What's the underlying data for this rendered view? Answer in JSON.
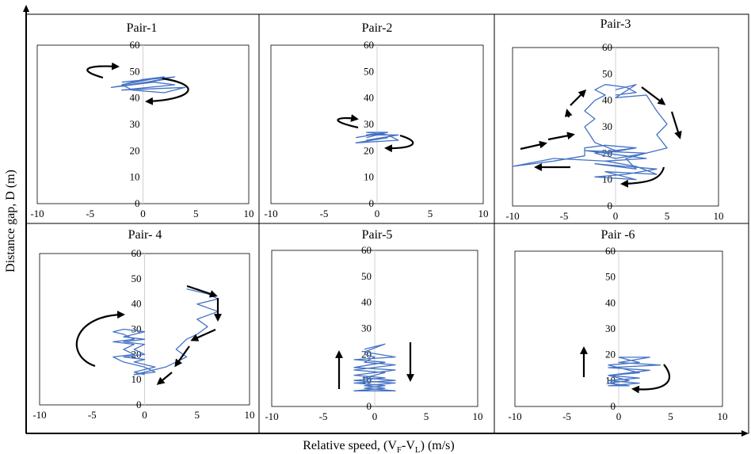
{
  "figure": {
    "ylabel": "Distance gap,  D (m)",
    "xlabel_prefix": "Relative speed, (V",
    "xlabel_sub_f": "F",
    "xlabel_mid": "-V",
    "xlabel_sub_l": "L",
    "xlabel_suffix": ") (m/s)"
  },
  "colors": {
    "trajectory": "#4472C4",
    "arrow": "#000000",
    "zero_line": "#d0d0d0",
    "frame": "#000000"
  },
  "chart_data": [
    {
      "type": "line",
      "title": "Pair-1",
      "xlim": [
        -10,
        10
      ],
      "ylim": [
        0,
        60
      ],
      "xticks": [
        -10,
        -5,
        0,
        5,
        10
      ],
      "yticks": [
        0,
        10,
        20,
        30,
        40,
        50,
        60
      ],
      "series": [
        {
          "values": [
            [
              -2,
              46
            ],
            [
              3,
              48
            ],
            [
              -1,
              45
            ],
            [
              2,
              47
            ],
            [
              -3,
              44
            ],
            [
              1,
              46
            ],
            [
              3,
              45
            ],
            [
              -2,
              43
            ],
            [
              4,
              44
            ],
            [
              2,
              42
            ],
            [
              -1,
              43
            ],
            [
              -2,
              45
            ],
            [
              2,
              48
            ],
            [
              0,
              47
            ],
            [
              -2,
              45
            ]
          ]
        }
      ]
    },
    {
      "type": "line",
      "title": "Pair-2",
      "xlim": [
        -10,
        10
      ],
      "ylim": [
        0,
        60
      ],
      "xticks": [
        -10,
        -5,
        0,
        5,
        10
      ],
      "yticks": [
        0,
        10,
        20,
        30,
        40,
        50,
        60
      ],
      "series": [
        {
          "values": [
            [
              -2,
              25
            ],
            [
              1,
              27
            ],
            [
              -1,
              26
            ],
            [
              2,
              26
            ],
            [
              -1,
              24
            ],
            [
              1,
              25
            ],
            [
              -2,
              23
            ],
            [
              2,
              24
            ],
            [
              1,
              26
            ],
            [
              -1,
              27
            ],
            [
              1,
              27
            ],
            [
              -1,
              25
            ]
          ]
        }
      ]
    },
    {
      "type": "line",
      "title": "Pair-3",
      "xlim": [
        -10,
        10
      ],
      "ylim": [
        0,
        60
      ],
      "xticks": [
        -10,
        -5,
        0,
        5,
        10
      ],
      "yticks": [
        0,
        10,
        20,
        30,
        40,
        50,
        60
      ],
      "series": [
        {
          "values": [
            [
              0,
              44
            ],
            [
              2,
              46
            ],
            [
              0,
              41
            ],
            [
              3,
              42
            ],
            [
              4,
              36
            ],
            [
              5,
              31
            ],
            [
              4,
              27
            ],
            [
              5,
              22
            ],
            [
              3,
              20
            ],
            [
              1,
              18
            ],
            [
              2,
              14
            ],
            [
              0,
              15
            ],
            [
              -2,
              16
            ],
            [
              4,
              14
            ],
            [
              1,
              12
            ],
            [
              -2,
              11
            ],
            [
              2,
              10
            ],
            [
              -1,
              13
            ],
            [
              4,
              12
            ],
            [
              2,
              15
            ],
            [
              -1,
              17
            ],
            [
              3,
              18
            ],
            [
              -3,
              21
            ],
            [
              3,
              20
            ],
            [
              0,
              18
            ],
            [
              -2,
              20
            ],
            [
              2,
              22
            ],
            [
              -1,
              20
            ],
            [
              3,
              18
            ],
            [
              -1,
              17
            ],
            [
              -6,
              18
            ],
            [
              -10,
              15
            ],
            [
              -6,
              17
            ],
            [
              -3,
              19
            ],
            [
              -3,
              22
            ],
            [
              -1,
              23
            ],
            [
              2,
              22
            ],
            [
              0,
              21
            ],
            [
              -2,
              24
            ],
            [
              -3,
              30
            ],
            [
              -2,
              33
            ],
            [
              -3,
              36
            ],
            [
              -2,
              40
            ],
            [
              -1,
              42
            ],
            [
              -2,
              44
            ],
            [
              -1,
              46
            ],
            [
              1,
              45
            ],
            [
              2,
              43
            ],
            [
              0,
              42
            ]
          ]
        }
      ]
    },
    {
      "type": "line",
      "title": "Pair- 4",
      "xlim": [
        -10,
        10
      ],
      "ylim": [
        0,
        60
      ],
      "xticks": [
        -10,
        -5,
        0,
        5,
        10
      ],
      "yticks": [
        0,
        10,
        20,
        30,
        40,
        50,
        60
      ],
      "series": [
        {
          "values": [
            [
              4,
              46
            ],
            [
              6,
              44
            ],
            [
              7,
              42
            ],
            [
              5,
              40
            ],
            [
              7,
              37
            ],
            [
              5,
              34
            ],
            [
              6,
              31
            ],
            [
              5,
              28
            ],
            [
              4,
              26
            ],
            [
              3,
              22
            ],
            [
              4,
              19
            ],
            [
              3,
              17
            ],
            [
              2,
              15
            ],
            [
              0,
              13
            ],
            [
              -1,
              12
            ],
            [
              1,
              13
            ],
            [
              0,
              15
            ],
            [
              -2,
              17
            ],
            [
              -3,
              19
            ],
            [
              -1,
              20
            ],
            [
              -2,
              22
            ],
            [
              -1,
              24
            ],
            [
              -3,
              25
            ],
            [
              -1,
              26
            ],
            [
              -2,
              28
            ],
            [
              -3,
              29
            ],
            [
              -2,
              30
            ],
            [
              0,
              29
            ],
            [
              -2,
              27
            ],
            [
              0,
              26
            ],
            [
              -2,
              25
            ],
            [
              0,
              24
            ],
            [
              -1,
              22
            ],
            [
              0,
              20
            ],
            [
              -2,
              19
            ],
            [
              0,
              18
            ],
            [
              -1,
              17
            ],
            [
              1,
              15
            ],
            [
              0,
              14
            ],
            [
              -1,
              13
            ],
            [
              0,
              12
            ]
          ]
        }
      ]
    },
    {
      "type": "line",
      "title": "Pair-5",
      "xlim": [
        -10,
        10
      ],
      "ylim": [
        0,
        60
      ],
      "xticks": [
        -10,
        -5,
        0,
        5,
        10
      ],
      "yticks": [
        0,
        10,
        20,
        30,
        40,
        50,
        60
      ],
      "series": [
        {
          "values": [
            [
              -1,
              22
            ],
            [
              1,
              24
            ],
            [
              -1,
              21
            ],
            [
              2,
              19
            ],
            [
              -2,
              18
            ],
            [
              1,
              17
            ],
            [
              -2,
              15
            ],
            [
              2,
              14
            ],
            [
              -2,
              12
            ],
            [
              1,
              11
            ],
            [
              -2,
              10
            ],
            [
              2,
              9
            ],
            [
              -1,
              8
            ],
            [
              1,
              7
            ],
            [
              -2,
              6
            ],
            [
              2,
              6
            ],
            [
              -1,
              7
            ],
            [
              1,
              8
            ],
            [
              -2,
              9
            ],
            [
              2,
              10
            ],
            [
              -1,
              11
            ],
            [
              1,
              13
            ],
            [
              -2,
              14
            ],
            [
              2,
              16
            ],
            [
              -1,
              17
            ],
            [
              0,
              19
            ],
            [
              -1,
              20
            ]
          ]
        }
      ]
    },
    {
      "type": "line",
      "title": "Pair -6",
      "xlim": [
        -10,
        10
      ],
      "ylim": [
        0,
        60
      ],
      "xticks": [
        -10,
        -5,
        0,
        5,
        10
      ],
      "yticks": [
        0,
        10,
        20,
        30,
        40,
        50,
        60
      ],
      "series": [
        {
          "values": [
            [
              0,
              19
            ],
            [
              3,
              19
            ],
            [
              0,
              17
            ],
            [
              4,
              16
            ],
            [
              -1,
              15
            ],
            [
              3,
              14
            ],
            [
              -1,
              12
            ],
            [
              2,
              11
            ],
            [
              -1,
              10
            ],
            [
              2,
              9
            ],
            [
              -1,
              8
            ],
            [
              1,
              8
            ],
            [
              -1,
              9
            ],
            [
              1,
              10
            ],
            [
              0,
              11
            ],
            [
              -1,
              12
            ],
            [
              2,
              13
            ],
            [
              0,
              15
            ],
            [
              -1,
              16
            ],
            [
              2,
              17
            ],
            [
              1,
              18
            ],
            [
              0,
              19
            ]
          ]
        }
      ]
    }
  ]
}
